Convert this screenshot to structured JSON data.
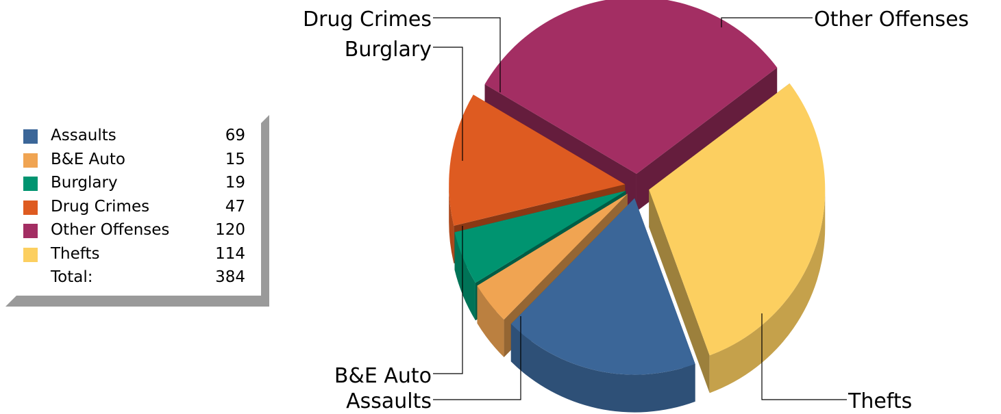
{
  "chart_data": {
    "type": "pie",
    "categories": [
      "Assaults",
      "B&E Auto",
      "Burglary",
      "Drug Crimes",
      "Other Offenses",
      "Thefts"
    ],
    "values": [
      69,
      15,
      19,
      47,
      120,
      114
    ],
    "colors": [
      "#3b6698",
      "#f0a452",
      "#009470",
      "#de5b21",
      "#a32e63",
      "#fccf60"
    ],
    "total_label": "Total:",
    "total": "384",
    "legend_position": "left",
    "three_d": true,
    "exploded": true
  },
  "legend": {
    "items": [
      {
        "label": "Assaults",
        "value": "69",
        "color": "#3b6698"
      },
      {
        "label": "B&E Auto",
        "value": "15",
        "color": "#f0a452"
      },
      {
        "label": "Burglary",
        "value": "19",
        "color": "#009470"
      },
      {
        "label": "Drug Crimes",
        "value": "47",
        "color": "#de5b21"
      },
      {
        "label": "Other Offenses",
        "value": "120",
        "color": "#a32e63"
      },
      {
        "label": "Thefts",
        "value": "114",
        "color": "#fccf60"
      }
    ],
    "total_label": "Total:",
    "total_value": "384"
  }
}
